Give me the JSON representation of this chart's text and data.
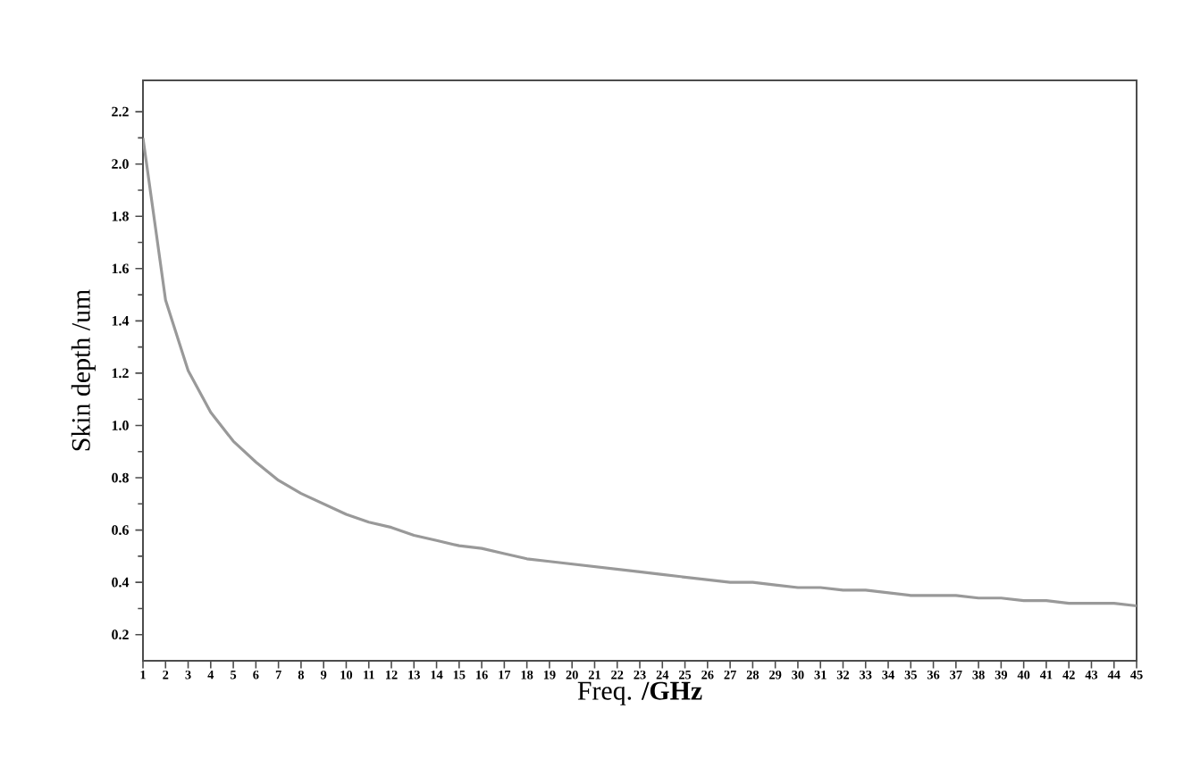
{
  "chart_data": {
    "type": "line",
    "xlabel": "Freq. **/GHz**",
    "ylabel": "Skin depth /um",
    "x": [
      1,
      2,
      3,
      4,
      5,
      6,
      7,
      8,
      9,
      10,
      11,
      12,
      13,
      14,
      15,
      16,
      17,
      18,
      19,
      20,
      21,
      22,
      23,
      24,
      25,
      26,
      27,
      28,
      29,
      30,
      31,
      32,
      33,
      34,
      35,
      36,
      37,
      38,
      39,
      40,
      41,
      42,
      43,
      44,
      45
    ],
    "series": [
      {
        "color": "#999999",
        "values": [
          2.1,
          1.48,
          1.21,
          1.05,
          0.94,
          0.86,
          0.79,
          0.74,
          0.7,
          0.66,
          0.63,
          0.61,
          0.58,
          0.56,
          0.54,
          0.53,
          0.51,
          0.49,
          0.48,
          0.47,
          0.46,
          0.45,
          0.44,
          0.43,
          0.42,
          0.41,
          0.4,
          0.4,
          0.39,
          0.38,
          0.38,
          0.37,
          0.37,
          0.36,
          0.35,
          0.35,
          0.35,
          0.34,
          0.34,
          0.33,
          0.33,
          0.32,
          0.32,
          0.32,
          0.31
        ]
      }
    ],
    "xlim": [
      1,
      45
    ],
    "ylim": [
      0.1,
      2.32
    ],
    "xticks": [
      1,
      2,
      3,
      4,
      5,
      6,
      7,
      8,
      9,
      10,
      11,
      12,
      13,
      14,
      15,
      16,
      17,
      18,
      19,
      20,
      21,
      22,
      23,
      24,
      25,
      26,
      27,
      28,
      29,
      30,
      31,
      32,
      33,
      34,
      35,
      36,
      37,
      38,
      39,
      40,
      41,
      42,
      43,
      44,
      45
    ],
    "yticks": [
      {
        "value": 0.2,
        "label": "0.2"
      },
      {
        "value": 0.4,
        "label": "0.4"
      },
      {
        "value": 0.6,
        "label": "0.6"
      },
      {
        "value": 0.8,
        "label": "0.8"
      },
      {
        "value": 1.0,
        "label": "1.0"
      },
      {
        "value": 1.2,
        "label": "1.2"
      },
      {
        "value": 1.4,
        "label": "1.4"
      },
      {
        "value": 1.6,
        "label": "1.6"
      },
      {
        "value": 1.8,
        "label": "1.8"
      },
      {
        "value": 2.0,
        "label": "2.0"
      },
      {
        "value": 2.2,
        "label": "2.2"
      }
    ],
    "marker": "none",
    "line_style": "solid"
  }
}
